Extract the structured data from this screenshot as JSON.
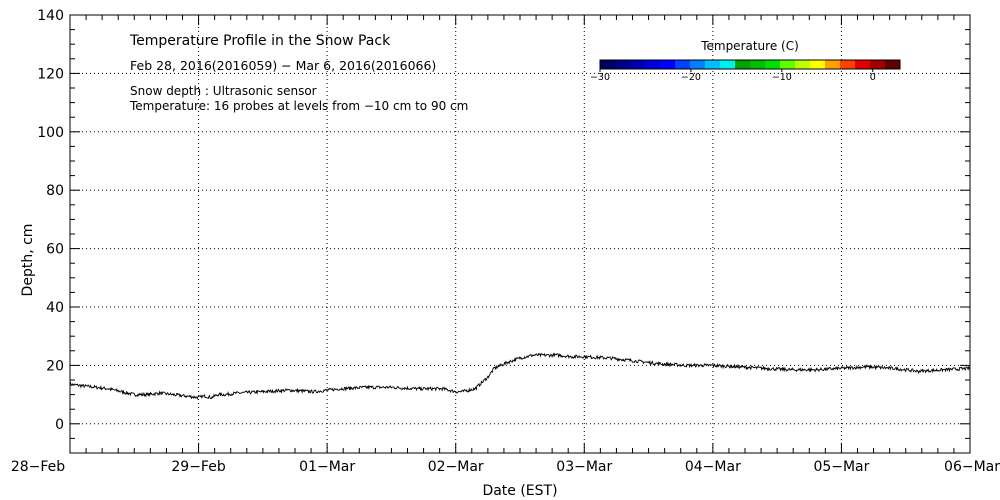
{
  "chart_data": {
    "type": "line",
    "title": "Temperature Profile in the Snow Pack",
    "subtitle": "Feb 28, 2016(2016059) − Mar  6, 2016(2016066)",
    "annotations": [
      "Snow depth : Ultrasonic sensor",
      "Temperature: 16 probes at levels from −10 cm to 90 cm"
    ],
    "xlabel": "Date (EST)",
    "ylabel": "Depth, cm",
    "x_ticks": [
      "28−Feb",
      "29−Feb",
      "01−Mar",
      "02−Mar",
      "03−Mar",
      "04−Mar",
      "05−Mar",
      "06−Mar"
    ],
    "xlim_days": [
      0,
      7
    ],
    "ylim": [
      -10,
      140
    ],
    "y_ticks": [
      0,
      20,
      40,
      60,
      80,
      100,
      120,
      140
    ],
    "grid": true,
    "series": [
      {
        "color": "#000000",
        "x_days": [
          0.0,
          0.1,
          0.2,
          0.3,
          0.4,
          0.5,
          0.6,
          0.7,
          0.8,
          0.9,
          1.0,
          1.05,
          1.1,
          1.15,
          1.2,
          1.3,
          1.5,
          1.7,
          1.9,
          2.0,
          2.1,
          2.3,
          2.5,
          2.7,
          2.9,
          3.0,
          3.05,
          3.1,
          3.15,
          3.2,
          3.25,
          3.3,
          3.4,
          3.5,
          3.6,
          3.7,
          3.8,
          3.9,
          4.0,
          4.2,
          4.4,
          4.6,
          4.8,
          5.0,
          5.2,
          5.4,
          5.6,
          5.8,
          6.0,
          6.2,
          6.4,
          6.6,
          6.8,
          7.0
        ],
        "y": [
          13.5,
          13.0,
          12.5,
          12.0,
          11.0,
          10.0,
          10.0,
          10.5,
          10.0,
          9.5,
          9.0,
          9.5,
          9.0,
          10.0,
          10.0,
          10.5,
          11.0,
          11.5,
          11.0,
          11.5,
          12.0,
          12.5,
          12.5,
          12.0,
          12.0,
          11.0,
          11.0,
          11.5,
          12.0,
          14.0,
          16.0,
          19.0,
          21.0,
          22.5,
          23.5,
          23.5,
          23.5,
          23.0,
          23.0,
          22.5,
          21.5,
          20.5,
          20.0,
          20.0,
          19.5,
          19.0,
          18.5,
          18.5,
          19.0,
          19.5,
          19.0,
          18.0,
          18.5,
          19.0
        ]
      }
    ],
    "colorbar": {
      "title": "Temperature (C)",
      "range": [
        -30,
        3
      ],
      "tick_values": [
        -30,
        -20,
        -10,
        0
      ],
      "tick_labels": [
        "−30",
        "−20",
        "−10",
        "0"
      ],
      "colors": [
        "#000060",
        "#00008a",
        "#0000b0",
        "#0000d8",
        "#0000ff",
        "#0040ff",
        "#0080ff",
        "#00bfff",
        "#00f0f0",
        "#00a000",
        "#00c000",
        "#00e000",
        "#60ff00",
        "#c0ff00",
        "#ffff00",
        "#ffa000",
        "#ff4000",
        "#e00000",
        "#a00000",
        "#600000"
      ]
    }
  }
}
